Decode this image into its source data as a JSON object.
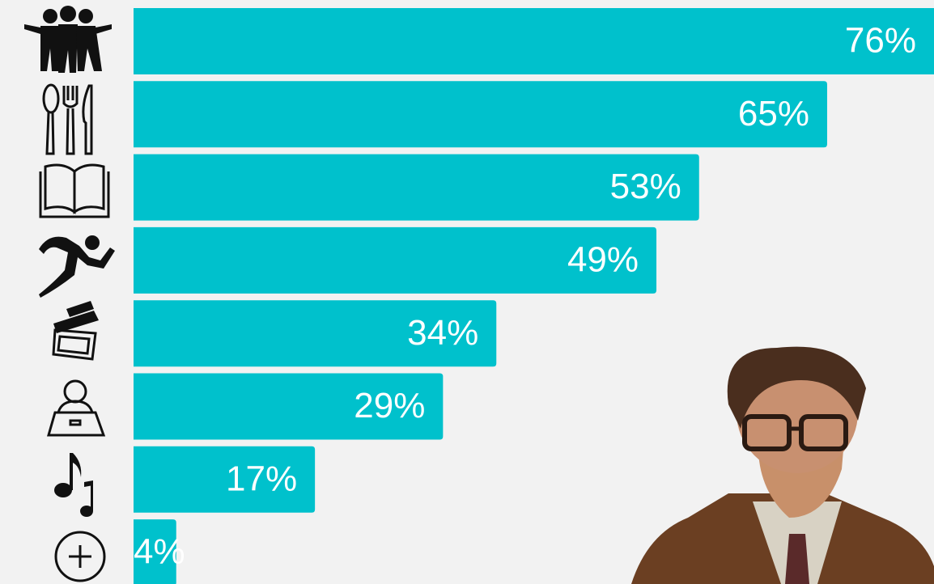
{
  "chart_data": {
    "type": "bar",
    "orientation": "horizontal",
    "categories": [
      null,
      null,
      null,
      null,
      null,
      null,
      null,
      null
    ],
    "values": [
      76,
      65,
      53,
      49,
      34,
      29,
      17,
      4
    ],
    "value_labels": [
      "76%",
      "65%",
      "53%",
      "49%",
      "34%",
      "29%",
      "17%",
      "4%"
    ],
    "color": "#00c1cc",
    "xlim": [
      0,
      76
    ]
  }
}
